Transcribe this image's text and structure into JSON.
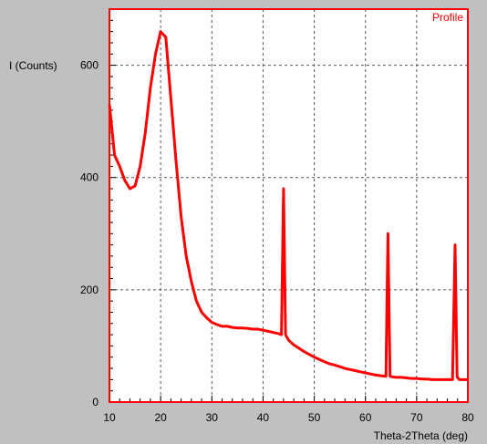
{
  "chart_data": {
    "type": "line",
    "ylabel": "I (Counts)",
    "xlabel": "Theta-2Theta (deg)",
    "legend": "Profile",
    "xlim": [
      10,
      80
    ],
    "ylim": [
      0,
      700
    ],
    "x_ticks": [
      10,
      20,
      30,
      40,
      50,
      60,
      70,
      80
    ],
    "y_ticks": [
      0,
      200,
      400,
      600
    ],
    "grid": true,
    "series": [
      {
        "name": "Profile",
        "color": "#ff0000",
        "x": [
          10,
          11,
          12,
          13,
          14,
          15,
          16,
          17,
          18,
          19,
          20,
          21,
          22,
          23,
          24,
          25,
          26,
          27,
          28,
          29,
          30,
          31,
          32,
          33,
          34,
          35,
          36,
          37,
          38,
          39,
          40,
          41,
          42,
          43,
          43.6,
          44.0,
          44.4,
          45,
          46,
          47,
          48,
          49,
          50,
          51,
          52,
          53,
          54,
          55,
          56,
          57,
          58,
          59,
          60,
          61,
          62,
          63,
          64,
          64.4,
          64.8,
          65.2,
          66,
          67,
          68,
          69,
          70,
          71,
          72,
          73,
          74,
          75,
          76,
          77,
          77.5,
          77.9,
          78.3,
          79,
          80
        ],
        "y": [
          530,
          440,
          420,
          395,
          380,
          385,
          420,
          480,
          560,
          620,
          660,
          650,
          540,
          430,
          330,
          260,
          215,
          180,
          160,
          150,
          142,
          138,
          135,
          135,
          133,
          132,
          132,
          131,
          130,
          130,
          128,
          126,
          124,
          122,
          120,
          380,
          120,
          110,
          102,
          96,
          90,
          85,
          80,
          76,
          72,
          68,
          66,
          63,
          60,
          58,
          56,
          54,
          52,
          50,
          48,
          47,
          46,
          300,
          46,
          45,
          44,
          44,
          43,
          42,
          42,
          41,
          41,
          40,
          40,
          40,
          40,
          40,
          280,
          45,
          40,
          40,
          40
        ]
      }
    ]
  }
}
